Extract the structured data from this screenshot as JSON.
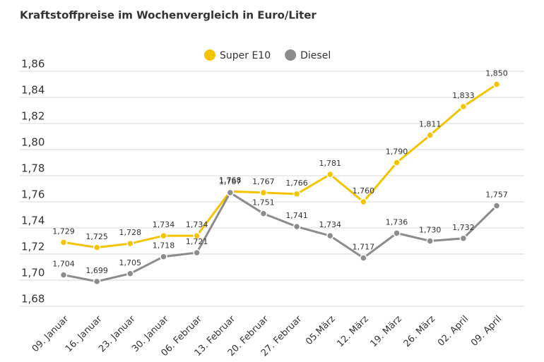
{
  "chart_data": {
    "type": "line",
    "title": "Kraftstoffpreise im Wochenvergleich in Euro/Liter",
    "categories": [
      "09. Januar",
      "16. Januar",
      "23. Januar",
      "30. Januar",
      "06. Februar",
      "13. Februar",
      "20. Februar",
      "27. Februar",
      "05.März",
      "12. März",
      "19. März",
      "26. März",
      "02. April",
      "09. April"
    ],
    "series": [
      {
        "name": "Super E10",
        "color": "#f5c400",
        "values": [
          1.729,
          1.725,
          1.728,
          1.734,
          1.734,
          1.768,
          1.767,
          1.766,
          1.781,
          1.76,
          1.79,
          1.811,
          1.833,
          1.85
        ],
        "value_labels": [
          "1,729",
          "1,725",
          "1,728",
          "1,734",
          "1,734",
          "1,768",
          "1,767",
          "1,766",
          "1,781",
          "1,760",
          "1,790",
          "1,811",
          "1,833",
          "1,850"
        ]
      },
      {
        "name": "Diesel",
        "color": "#8c8c8c",
        "values": [
          1.704,
          1.699,
          1.705,
          1.718,
          1.721,
          1.767,
          1.751,
          1.741,
          1.734,
          1.717,
          1.736,
          1.73,
          1.732,
          1.757
        ],
        "value_labels": [
          "1,704",
          "1,699",
          "1,705",
          "1,718",
          "1,721",
          "1,767",
          "1,751",
          "1,741",
          "1,734",
          "1,717",
          "1,736",
          "1,730",
          "1,732",
          "1,757"
        ]
      }
    ],
    "ylim": [
      1.68,
      1.86
    ],
    "yticks": [
      {
        "value": 1.68,
        "label": "1,68"
      },
      {
        "value": 1.7,
        "label": "1,70"
      },
      {
        "value": 1.72,
        "label": "1,72"
      },
      {
        "value": 1.74,
        "label": "1,74"
      },
      {
        "value": 1.76,
        "label": "1,76"
      },
      {
        "value": 1.78,
        "label": "1,78"
      },
      {
        "value": 1.8,
        "label": "1,80"
      },
      {
        "value": 1.82,
        "label": "1,82"
      },
      {
        "value": 1.84,
        "label": "1,84"
      },
      {
        "value": 1.86,
        "label": "1,86"
      }
    ],
    "grid": true
  }
}
